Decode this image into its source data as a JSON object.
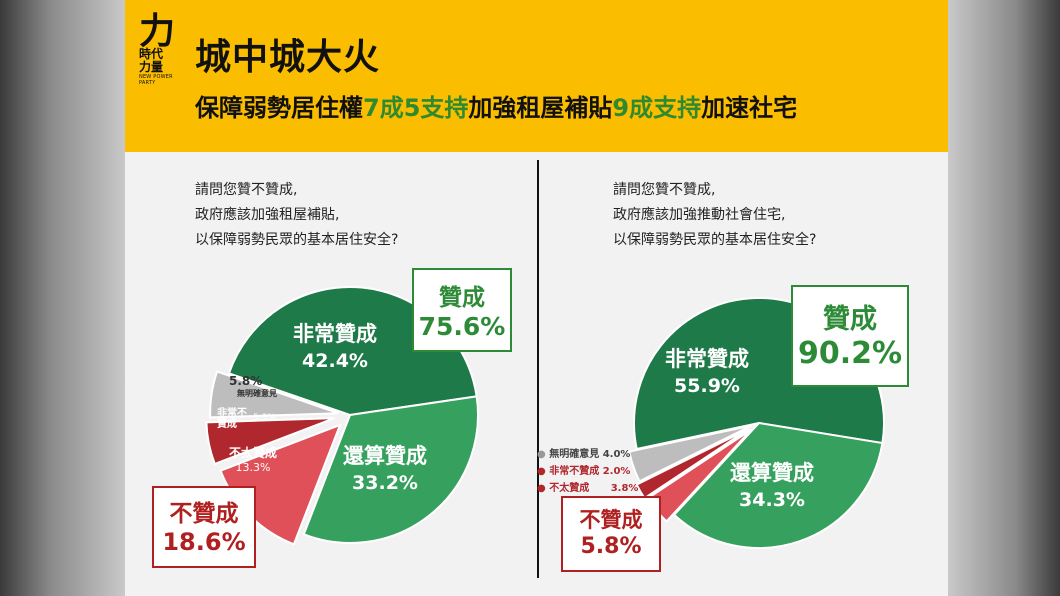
{
  "header": {
    "title": "城中城大火",
    "subtitle_parts": [
      "保障弱勢居住權",
      "7成5支持",
      "加強租屋補貼",
      "9成支持",
      "加速社宅"
    ],
    "logo_line1": "時代",
    "logo_line2": "力量",
    "logo_small": "NEW POWER PARTY"
  },
  "colors": {
    "header_bg": "#fbbd00",
    "dark_green": "#1e7a48",
    "mid_green": "#36a05e",
    "gray": "#bdbdbd",
    "dark_red": "#b0282e",
    "light_red": "#e05058",
    "box_green": "#2d8a36",
    "box_red": "#b02020"
  },
  "chart_data": [
    {
      "type": "pie",
      "question_lines": [
        "請問您贊不贊成,",
        "政府應該加強租屋補貼,",
        "以保障弱勢民眾的基本居住安全?"
      ],
      "slices": [
        {
          "label": "非常贊成",
          "value": 42.4,
          "value_text": "42.4%"
        },
        {
          "label": "還算贊成",
          "value": 33.2,
          "value_text": "33.2%"
        },
        {
          "label": "不太贊成",
          "value": 13.3,
          "value_text": "13.3%"
        },
        {
          "label": "非常不贊成",
          "value": 5.3,
          "value_text": "5.3%"
        },
        {
          "label": "無明確意見",
          "value": 5.8,
          "value_text": "5.8%"
        }
      ],
      "summary_approve": {
        "label": "贊成",
        "value_text": "75.6%"
      },
      "summary_disapprove": {
        "label": "不贊成",
        "value_text": "18.6%"
      }
    },
    {
      "type": "pie",
      "question_lines": [
        "請問您贊不贊成,",
        "政府應該加強推動社會住宅,",
        "以保障弱勢民眾的基本居住安全?"
      ],
      "slices": [
        {
          "label": "非常贊成",
          "value": 55.9,
          "value_text": "55.9%"
        },
        {
          "label": "還算贊成",
          "value": 34.3,
          "value_text": "34.3%"
        },
        {
          "label": "不太贊成",
          "value": 3.8,
          "value_text": "3.8%"
        },
        {
          "label": "非常不贊成",
          "value": 2.0,
          "value_text": "2.0%"
        },
        {
          "label": "無明確意見",
          "value": 4.0,
          "value_text": "4.0%"
        }
      ],
      "summary_approve": {
        "label": "贊成",
        "value_text": "90.2%"
      },
      "summary_disapprove": {
        "label": "不贊成",
        "value_text": "5.8%"
      }
    }
  ]
}
